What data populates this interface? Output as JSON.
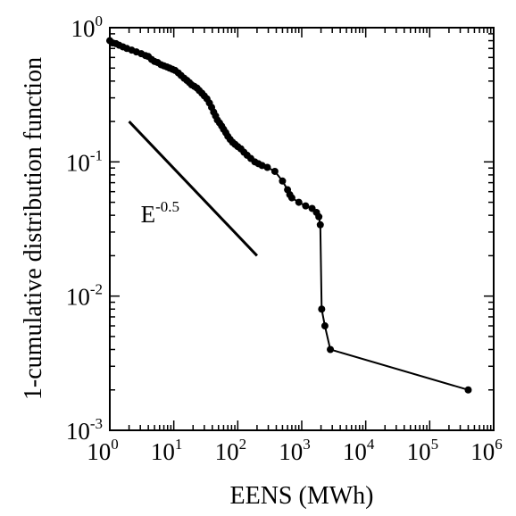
{
  "chart_data": {
    "type": "scatter",
    "xlabel": "EENS (MWh)",
    "ylabel": "1-cumulative distribution function",
    "xscale": "log",
    "yscale": "log",
    "xlim": [
      1,
      1000000
    ],
    "ylim": [
      0.001,
      1
    ],
    "x_ticks": [
      {
        "base": "10",
        "exp": "0",
        "value": 1
      },
      {
        "base": "10",
        "exp": "1",
        "value": 10
      },
      {
        "base": "10",
        "exp": "2",
        "value": 100
      },
      {
        "base": "10",
        "exp": "3",
        "value": 1000
      },
      {
        "base": "10",
        "exp": "4",
        "value": 10000
      },
      {
        "base": "10",
        "exp": "5",
        "value": 100000
      },
      {
        "base": "10",
        "exp": "6",
        "value": 1000000
      }
    ],
    "y_ticks": [
      {
        "base": "10",
        "exp": "0",
        "value": 1
      },
      {
        "base": "10",
        "exp": "-1",
        "value": 0.1
      },
      {
        "base": "10",
        "exp": "-2",
        "value": 0.01
      },
      {
        "base": "10",
        "exp": "-3",
        "value": 0.001
      }
    ],
    "grid": false,
    "connected": true,
    "marker_color": "#000000",
    "series": [
      {
        "x": [
          1.0,
          1.1,
          1.25,
          1.4,
          1.6,
          1.85,
          2.2,
          2.6,
          3.1,
          3.6,
          4.0,
          4.5,
          5.0,
          5.6,
          6.3,
          7.0,
          7.8,
          8.6,
          9.5,
          10.5,
          11.8,
          13.0,
          14.5,
          16.0,
          17.5,
          19.0,
          21.0,
          23.0,
          25.0,
          27.5,
          30.0,
          33.0,
          36.0,
          39.0,
          42.0,
          45.0,
          48.0,
          52.0,
          56.0,
          60.0,
          65.0,
          70.0,
          76.0,
          83.0,
          91.0,
          100.0,
          112.0,
          125.0,
          140.0,
          160.0,
          185.0,
          210.0,
          240.0,
          290.0,
          380.0,
          500.0,
          600.0,
          650.0,
          700.0,
          900.0,
          1150.0,
          1450.0,
          1700.0,
          1850.0,
          1950.0,
          2050.0,
          2300.0,
          2800.0,
          400000.0
        ],
        "y": [
          0.8,
          0.77,
          0.76,
          0.74,
          0.72,
          0.7,
          0.68,
          0.66,
          0.64,
          0.62,
          0.61,
          0.58,
          0.56,
          0.55,
          0.53,
          0.52,
          0.51,
          0.5,
          0.49,
          0.48,
          0.46,
          0.44,
          0.42,
          0.405,
          0.39,
          0.375,
          0.365,
          0.355,
          0.34,
          0.325,
          0.31,
          0.295,
          0.275,
          0.255,
          0.235,
          0.22,
          0.205,
          0.195,
          0.185,
          0.175,
          0.165,
          0.155,
          0.147,
          0.14,
          0.135,
          0.13,
          0.125,
          0.118,
          0.112,
          0.106,
          0.1,
          0.097,
          0.094,
          0.091,
          0.085,
          0.072,
          0.062,
          0.057,
          0.054,
          0.05,
          0.047,
          0.045,
          0.042,
          0.039,
          0.034,
          0.008,
          0.006,
          0.004,
          0.002
        ]
      }
    ],
    "reference_line": {
      "label_base": "E",
      "label_exp": "-0.5",
      "x": [
        2,
        200
      ],
      "y": [
        0.2,
        0.02
      ]
    }
  }
}
